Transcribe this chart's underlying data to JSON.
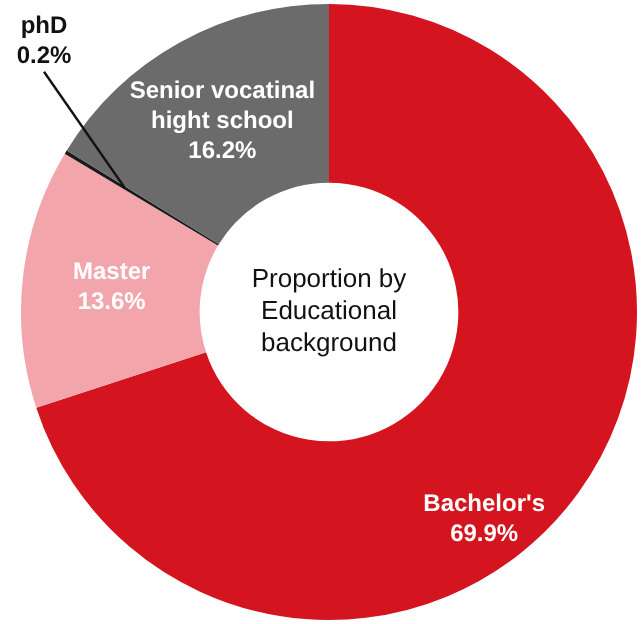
{
  "chart_data": {
    "type": "donut",
    "title": "Proportion by Educational background",
    "categories": [
      "Bachelor's",
      "Master",
      "phD",
      "Senior vocatinal hight school"
    ],
    "values": [
      69.9,
      13.6,
      0.2,
      16.2
    ],
    "value_labels": [
      "69.9%",
      "13.6%",
      "0.2%",
      "16.2%"
    ],
    "colors": [
      "#d4141e",
      "#f2a6ac",
      "#1a1a1a",
      "#6b6b6b"
    ],
    "legend": false
  }
}
